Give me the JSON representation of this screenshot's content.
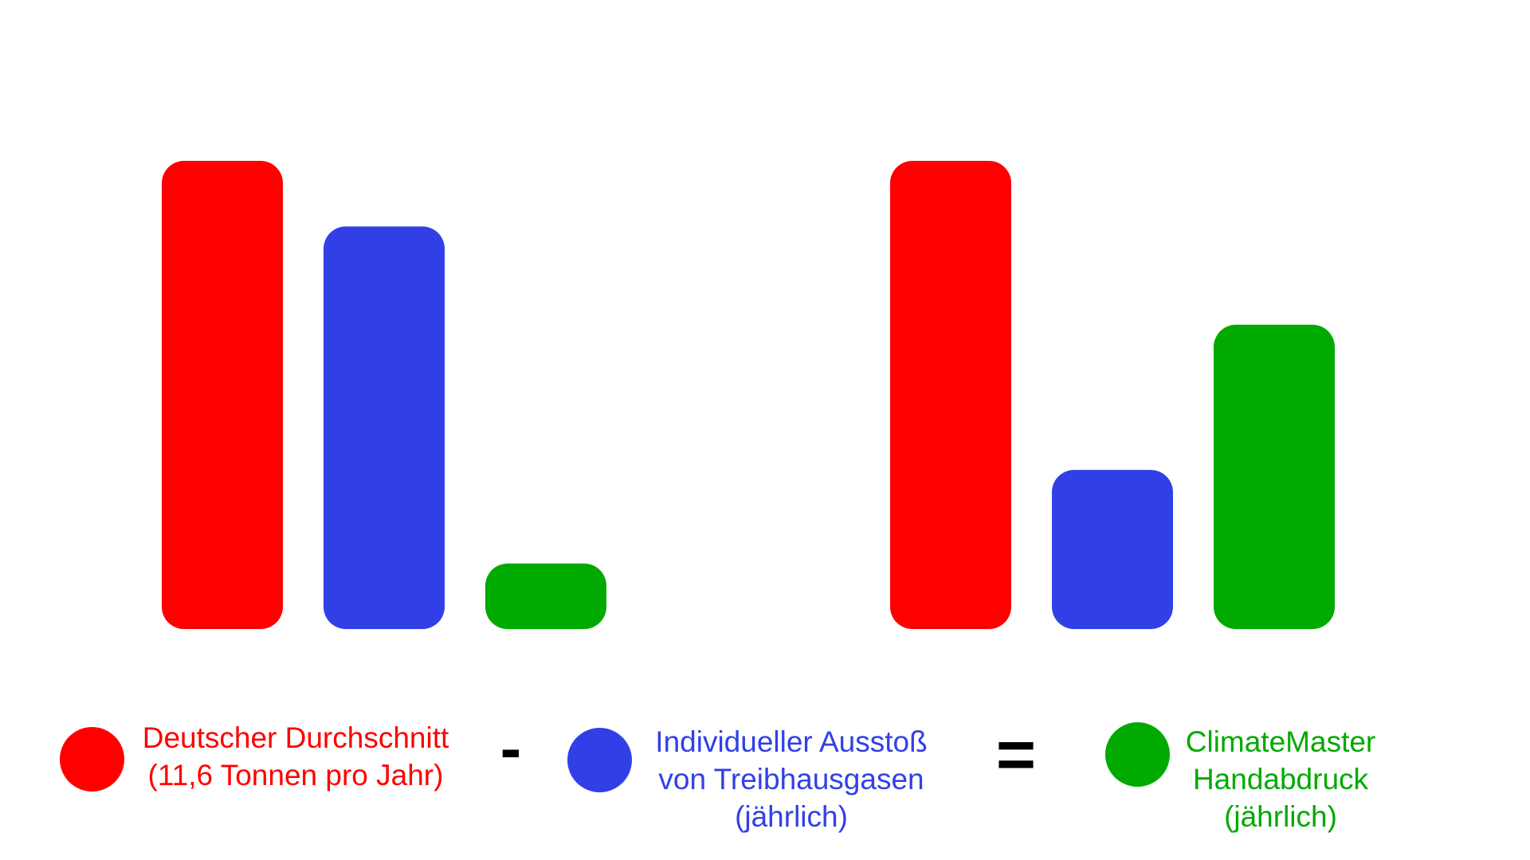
{
  "colors": {
    "red": "#ff0000",
    "blue": "#3140e6",
    "green": "#00aa00"
  },
  "chart_data": [
    {
      "type": "bar",
      "categories": [
        "Deutscher Durchschnitt",
        "Individueller Ausstoß von Treibhausgasen",
        "ClimateMaster Handabdruck"
      ],
      "values": [
        1.0,
        0.86,
        0.14
      ],
      "colors": [
        "#ff0000",
        "#3140e6",
        "#00aa00"
      ],
      "ylim": [
        0,
        1
      ],
      "note_scale": "relative heights, no axis printed"
    },
    {
      "type": "bar",
      "categories": [
        "Deutscher Durchschnitt",
        "Individueller Ausstoß von Treibhausgasen",
        "ClimateMaster Handabdruck"
      ],
      "values": [
        1.0,
        0.34,
        0.65
      ],
      "colors": [
        "#ff0000",
        "#3140e6",
        "#00aa00"
      ],
      "ylim": [
        0,
        1
      ]
    }
  ],
  "legend": {
    "items": [
      {
        "lines": [
          "Deutscher Durchschnitt",
          "(11,6 Tonnen pro Jahr)"
        ],
        "color": "#ff0000"
      },
      {
        "lines": [
          "Individueller Ausstoß",
          "von Treibhausgasen",
          "(jährlich)"
        ],
        "color": "#3140e6"
      },
      {
        "lines": [
          "ClimateMaster",
          "Handabdruck",
          "(jährlich)"
        ],
        "color": "#00aa00"
      }
    ],
    "operators": [
      "-",
      "="
    ]
  }
}
